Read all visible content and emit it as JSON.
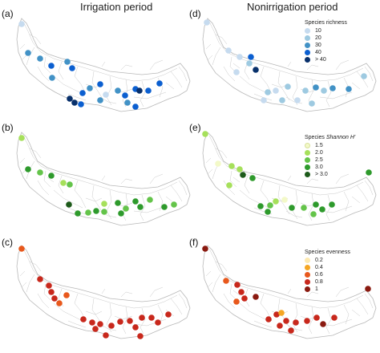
{
  "columns": {
    "left_title": "Irrigation period",
    "right_title": "Nonirrigation period"
  },
  "panels": {
    "a": "(a)",
    "b": "(b)",
    "c": "(c)",
    "d": "(d)",
    "e": "(e)",
    "f": "(f)"
  },
  "legends": {
    "richness": {
      "title": "Species richness",
      "items": [
        {
          "label": "10",
          "color": "#c6dbef"
        },
        {
          "label": "20",
          "color": "#9ecae1"
        },
        {
          "label": "30",
          "color": "#4292c6"
        },
        {
          "label": "40",
          "color": "#0b5fd0"
        },
        {
          "label": "> 40",
          "color": "#08306b"
        }
      ]
    },
    "shannon": {
      "title_prefix": "Species ",
      "title_italic": "Shannon H'",
      "items": [
        {
          "label": "1.5",
          "color": "#f3f9c8"
        },
        {
          "label": "2.0",
          "color": "#a6e05b"
        },
        {
          "label": "2.5",
          "color": "#64c44a"
        },
        {
          "label": "3.0",
          "color": "#2e9a2c"
        },
        {
          "label": "> 3.0",
          "color": "#1d5a1a"
        }
      ]
    },
    "evenness": {
      "title": "Species evenness",
      "items": [
        {
          "label": "0.2",
          "color": "#fde9b0"
        },
        {
          "label": "0.4",
          "color": "#f5a623"
        },
        {
          "label": "0.6",
          "color": "#e8581c"
        },
        {
          "label": "0.8",
          "color": "#c8281c"
        },
        {
          "label": "1",
          "color": "#8a1a10"
        }
      ]
    }
  }
}
